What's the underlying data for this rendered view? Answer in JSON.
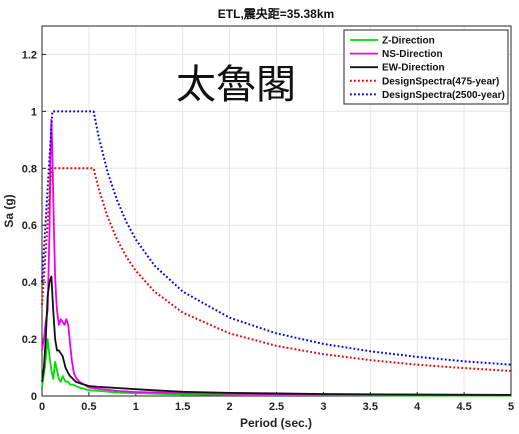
{
  "chart_data": {
    "type": "line",
    "title": "ETL,震央距=35.38km",
    "annotation": "太魯閣",
    "xlabel": "Period (sec.)",
    "ylabel": "Sa (g)",
    "xlim": [
      0,
      5
    ],
    "ylim": [
      0,
      1.3
    ],
    "xticks": [
      0,
      0.5,
      1,
      1.5,
      2,
      2.5,
      3,
      3.5,
      4,
      4.5,
      5
    ],
    "xtick_labels": [
      "0",
      "0.5",
      "1",
      "1.5",
      "2",
      "2.5",
      "3",
      "3.5",
      "4",
      "4.5",
      "5"
    ],
    "yticks": [
      0,
      0.2,
      0.4,
      0.6,
      0.8,
      1,
      1.2
    ],
    "ytick_labels": [
      "0",
      "0.2",
      "0.4",
      "0.6",
      "0.8",
      "1",
      "1.2"
    ],
    "grid": true,
    "legend_position": "top-right",
    "series": [
      {
        "name": "Z-Direction",
        "color": "#00dd00",
        "style": "solid",
        "x": [
          0,
          0.03,
          0.06,
          0.08,
          0.1,
          0.12,
          0.14,
          0.16,
          0.18,
          0.2,
          0.22,
          0.25,
          0.28,
          0.3,
          0.33,
          0.36,
          0.4,
          0.45,
          0.5,
          0.6,
          0.7,
          0.8,
          1,
          1.2,
          1.5,
          2,
          3,
          4,
          5
        ],
        "y": [
          0.03,
          0.1,
          0.2,
          0.14,
          0.09,
          0.06,
          0.12,
          0.09,
          0.06,
          0.05,
          0.07,
          0.05,
          0.05,
          0.04,
          0.04,
          0.035,
          0.03,
          0.025,
          0.02,
          0.018,
          0.015,
          0.012,
          0.01,
          0.008,
          0.006,
          0.004,
          0.003,
          0.002,
          0.002
        ]
      },
      {
        "name": "NS-Direction",
        "color": "#ee00ee",
        "style": "solid",
        "x": [
          0,
          0.02,
          0.04,
          0.06,
          0.08,
          0.09,
          0.1,
          0.11,
          0.12,
          0.13,
          0.14,
          0.15,
          0.16,
          0.18,
          0.2,
          0.22,
          0.24,
          0.26,
          0.28,
          0.3,
          0.32,
          0.34,
          0.37,
          0.4,
          0.45,
          0.5,
          0.6,
          0.8,
          1,
          1.5,
          2,
          3,
          4,
          5
        ],
        "y": [
          0.16,
          0.2,
          0.26,
          0.3,
          0.58,
          0.85,
          0.97,
          0.86,
          0.7,
          0.55,
          0.42,
          0.35,
          0.3,
          0.25,
          0.27,
          0.26,
          0.25,
          0.27,
          0.25,
          0.18,
          0.12,
          0.08,
          0.06,
          0.05,
          0.04,
          0.03,
          0.025,
          0.018,
          0.014,
          0.01,
          0.008,
          0.005,
          0.004,
          0.003
        ]
      },
      {
        "name": "EW-Direction",
        "color": "#111111",
        "style": "solid",
        "x": [
          0,
          0.02,
          0.04,
          0.06,
          0.08,
          0.1,
          0.12,
          0.14,
          0.16,
          0.18,
          0.2,
          0.22,
          0.25,
          0.28,
          0.3,
          0.33,
          0.36,
          0.4,
          0.45,
          0.5,
          0.6,
          0.7,
          0.8,
          1,
          1.2,
          1.5,
          2,
          2.5,
          3,
          4,
          5
        ],
        "y": [
          0.05,
          0.1,
          0.2,
          0.35,
          0.4,
          0.42,
          0.3,
          0.2,
          0.16,
          0.16,
          0.15,
          0.14,
          0.1,
          0.08,
          0.07,
          0.06,
          0.05,
          0.045,
          0.04,
          0.035,
          0.032,
          0.03,
          0.028,
          0.024,
          0.02,
          0.015,
          0.011,
          0.009,
          0.007,
          0.005,
          0.004
        ]
      },
      {
        "name": "DesignSpectra(475-year)",
        "color": "#ee0000",
        "style": "dotted",
        "x": [
          0,
          0.1,
          0.55,
          0.6,
          0.7,
          0.8,
          0.9,
          1,
          1.2,
          1.5,
          2,
          2.5,
          3,
          3.5,
          4,
          4.5,
          5
        ],
        "y": [
          0.32,
          0.8,
          0.8,
          0.733,
          0.629,
          0.55,
          0.489,
          0.44,
          0.367,
          0.293,
          0.22,
          0.176,
          0.147,
          0.126,
          0.11,
          0.098,
          0.088
        ]
      },
      {
        "name": "DesignSpectra(2500-year)",
        "color": "#0000ee",
        "style": "dotted",
        "x": [
          0,
          0.11,
          0.55,
          0.6,
          0.7,
          0.8,
          0.9,
          1,
          1.2,
          1.5,
          2,
          2.5,
          3,
          3.5,
          4,
          4.5,
          5
        ],
        "y": [
          0.4,
          1,
          1,
          0.917,
          0.786,
          0.688,
          0.611,
          0.55,
          0.458,
          0.367,
          0.275,
          0.22,
          0.183,
          0.157,
          0.1375,
          0.122,
          0.11
        ]
      }
    ]
  }
}
